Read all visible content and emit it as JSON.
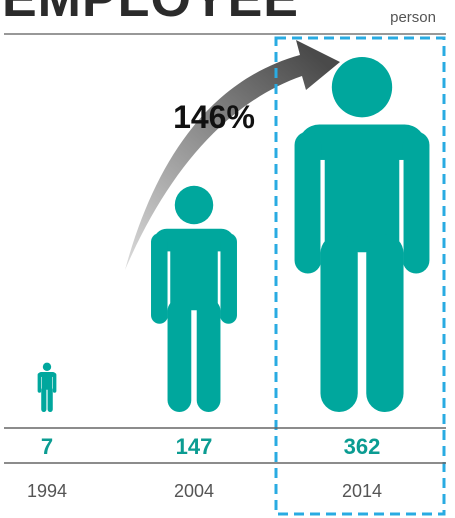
{
  "title": "EMPLOYEE",
  "unit": "person",
  "growth_label": "146%",
  "colors": {
    "figure": "#00a79d",
    "value_text": "#0b9c92",
    "year_text": "#555555",
    "highlight": "#29abe2",
    "arrow_light": "#dcdcdc",
    "arrow_dark": "#4a4a4a",
    "rule": "#666666"
  },
  "chart_data": {
    "type": "bar",
    "title": "EMPLOYEE",
    "unit": "person",
    "categories": [
      "1994",
      "2004",
      "2014"
    ],
    "values": [
      7,
      147,
      362
    ],
    "value_labels": [
      "7",
      "147",
      "362"
    ],
    "highlighted_category": "2014",
    "annotation": "146%",
    "legend": "none",
    "grid": false
  }
}
